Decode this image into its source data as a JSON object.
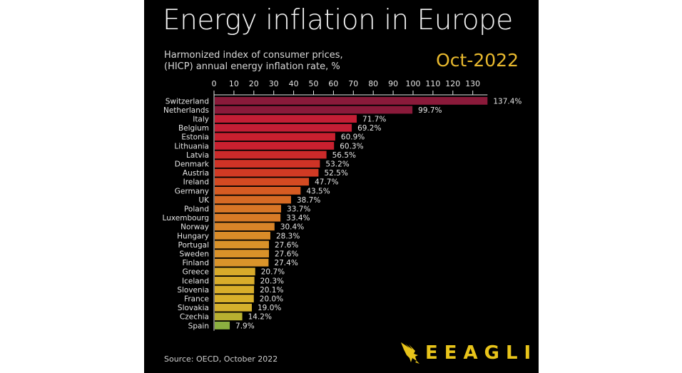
{
  "header": {
    "title": "Energy inflation in Europe",
    "subtitle_line1": "Harmonized index of consumer prices,",
    "subtitle_line2": "(HICP) annual energy inflation rate, %",
    "date": "Oct-2022"
  },
  "footer": {
    "source": "Source: OECD, October 2022",
    "brand": "EEAGLI",
    "brand_icon": "eagle-icon"
  },
  "colors": {
    "background": "#000000",
    "accent": "#e8b92e"
  },
  "chart_data": {
    "type": "bar",
    "orientation": "horizontal",
    "title": "Energy inflation in Europe",
    "subtitle": "Harmonized index of consumer prices, (HICP) annual energy inflation rate, %",
    "xlabel": "",
    "ylabel": "",
    "xlim": [
      0,
      137.4
    ],
    "x_ticks": [
      0,
      10,
      20,
      30,
      40,
      50,
      60,
      70,
      80,
      90,
      100,
      110,
      120,
      130
    ],
    "axis_position": "top",
    "grid": false,
    "value_suffix": "%",
    "categories": [
      "Switzerland",
      "Netherlands",
      "Italy",
      "Belgium",
      "Estonia",
      "Lithuania",
      "Latvia",
      "Denmark",
      "Austria",
      "Ireland",
      "Germany",
      "UK",
      "Poland",
      "Luxembourg",
      "Norway",
      "Hungary",
      "Portugal",
      "Sweden",
      "Finland",
      "Greece",
      "Iceland",
      "Slovenia",
      "France",
      "Slovakia",
      "Czechia",
      "Spain"
    ],
    "values": [
      137.4,
      99.7,
      71.7,
      69.2,
      60.9,
      60.3,
      56.5,
      53.2,
      52.5,
      47.7,
      43.5,
      38.7,
      33.7,
      33.4,
      30.4,
      28.3,
      27.6,
      27.6,
      27.4,
      20.7,
      20.3,
      20.1,
      20.0,
      19.0,
      14.2,
      7.9
    ],
    "data_labels": [
      "137.4%",
      "99.7%",
      "71.7%",
      "69.2%",
      "60.9%",
      "60.3%",
      "56.5%",
      "53.2%",
      "52.5%",
      "47.7%",
      "43.5%",
      "38.7%",
      "33.7%",
      "33.4%",
      "30.4%",
      "28.3%",
      "27.6%",
      "27.6%",
      "27.4%",
      "20.7%",
      "20.3%",
      "20.1%",
      "20.0%",
      "19.0%",
      "14.2%",
      "7.9%"
    ],
    "bar_colors": [
      "#8a1a3a",
      "#8a1a3a",
      "#c41e35",
      "#c41e35",
      "#c9202f",
      "#c9202f",
      "#cc2a2a",
      "#cf3326",
      "#d13a24",
      "#d44a22",
      "#d65b22",
      "#d66a24",
      "#d87626",
      "#d87a26",
      "#d98428",
      "#da8c28",
      "#da9229",
      "#da9229",
      "#da942a",
      "#d8aa2a",
      "#d8ac2a",
      "#d8ae2a",
      "#d8b02a",
      "#d4b02c",
      "#b8b030",
      "#8cb040"
    ]
  }
}
